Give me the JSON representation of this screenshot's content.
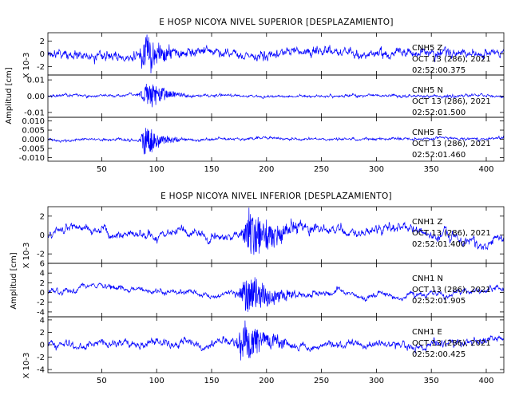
{
  "line_color": "#0000ff",
  "chart_data": [
    {
      "type": "line",
      "title": "E HOSP NICOYA NIVEL SUPERIOR [DESPLAZAMIENTO]",
      "ylabel": "Amplitud [cm]",
      "xlim": [
        1,
        416
      ],
      "xticks": [
        50,
        100,
        150,
        200,
        250,
        300,
        350,
        400
      ],
      "series": [
        {
          "station": "CNH5",
          "component": "Z",
          "date": "OCT 13 (286), 2021",
          "time": "02:52:00.375",
          "ylim": [
            -3.3,
            3.3
          ],
          "yticks": [
            2,
            0,
            -2
          ],
          "scale_label": "X 10-3",
          "event_center": 89,
          "event_width": 12,
          "peak": 2.9,
          "noise": 0.5,
          "wander": 0.6,
          "seed": 11
        },
        {
          "station": "CNH5",
          "component": "N",
          "date": "OCT 13 (286), 2021",
          "time": "02:52:01.500",
          "ylim": [
            -0.013,
            0.013
          ],
          "yticks": [
            0.01,
            0.0,
            -0.01
          ],
          "tick_labels": [
            "0.01",
            "0.00",
            "-0.01"
          ],
          "scale_label": "",
          "event_center": 91,
          "event_width": 10,
          "peak": 0.0105,
          "noise": 0.0006,
          "wander": 0.0005,
          "seed": 23
        },
        {
          "station": "CNH5",
          "component": "E",
          "date": "OCT 13 (286), 2021",
          "time": "02:52:01.460",
          "ylim": [
            -0.012,
            0.012
          ],
          "yticks": [
            0.01,
            0.005,
            0.0,
            -0.005,
            -0.01
          ],
          "tick_labels": [
            "0.010",
            "0.005",
            "0.000",
            "-0.005",
            "-0.010"
          ],
          "scale_label": "",
          "event_center": 90,
          "event_width": 9,
          "peak": 0.0095,
          "noise": 0.0005,
          "wander": 0.0005,
          "seed": 37
        }
      ]
    },
    {
      "type": "line",
      "title": "E HOSP NICOYA NIVEL INFERIOR [DESPLAZAMIENTO]",
      "ylabel": "Amplitud [cm]",
      "xlim": [
        1,
        416
      ],
      "xticks": [
        0,
        50,
        100,
        150,
        200,
        250,
        300,
        350,
        400
      ],
      "series": [
        {
          "station": "CNH1",
          "component": "Z",
          "date": "OCT 13 (286), 2021",
          "time": "02:52:01.400",
          "ylim": [
            -3.0,
            3.0
          ],
          "yticks": [
            2,
            0,
            -2
          ],
          "scale_label": "X 10-3",
          "event_center": 185,
          "event_width": 16,
          "peak": 2.7,
          "noise": 0.3,
          "wander": 0.6,
          "seed": 51
        },
        {
          "station": "CNH1",
          "component": "N",
          "date": "OCT 13 (286), 2021",
          "time": "02:52:01.905",
          "ylim": [
            -5.0,
            6.0
          ],
          "yticks": [
            6,
            4,
            2,
            0,
            -2,
            -4
          ],
          "scale_label": "X 10-3",
          "event_center": 183,
          "event_width": 16,
          "peak": 4.2,
          "noise": 0.35,
          "wander": 0.8,
          "seed": 67
        },
        {
          "station": "CNH1",
          "component": "E",
          "date": "OCT 13 (286), 2021",
          "time": "02:52:00.425",
          "ylim": [
            -4.5,
            4.5
          ],
          "yticks": [
            4,
            2,
            0,
            -2,
            -4
          ],
          "scale_label": "X 10-3",
          "event_center": 180,
          "event_width": 14,
          "peak": 3.8,
          "noise": 0.4,
          "wander": 0.7,
          "seed": 79
        }
      ]
    }
  ]
}
